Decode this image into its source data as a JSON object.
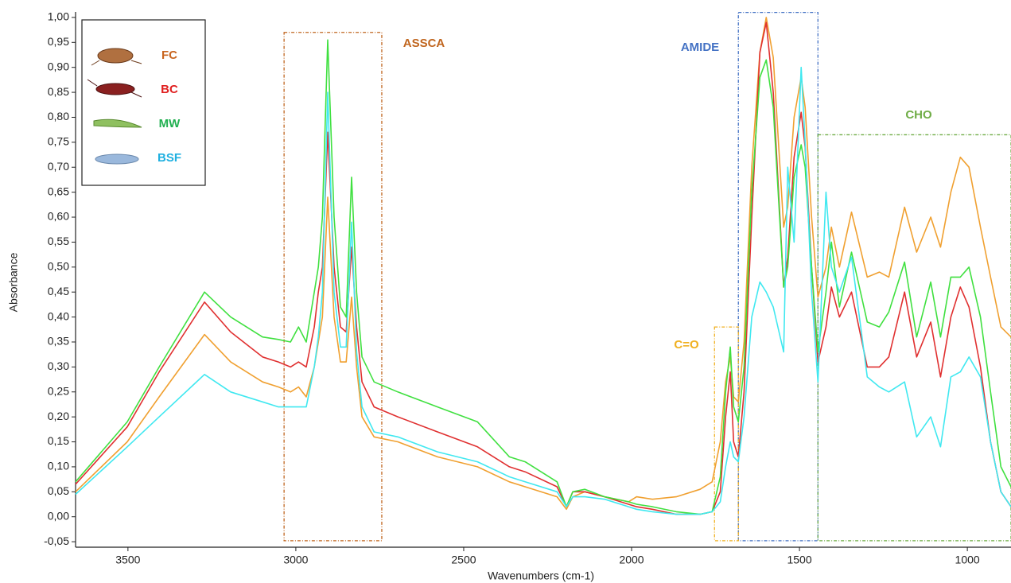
{
  "chart_data": {
    "type": "line",
    "x_label": "Wavenumbers (cm-1)",
    "y_label": "Absorbance",
    "xlim": [
      3656,
      870
    ],
    "ylim": [
      -0.061,
      1.011
    ],
    "xticks": [
      3500,
      3000,
      2500,
      2000,
      1500,
      1000
    ],
    "yticks": [
      {
        "value": -0.05,
        "label": "-0,05"
      },
      {
        "value": 0,
        "label": "0,00"
      },
      {
        "value": 0.05,
        "label": "0,05"
      },
      {
        "value": 0.1,
        "label": "0,10"
      },
      {
        "value": 0.15,
        "label": "0,15"
      },
      {
        "value": 0.2,
        "label": "0,20"
      },
      {
        "value": 0.25,
        "label": "0,25"
      },
      {
        "value": 0.3,
        "label": "0,30"
      },
      {
        "value": 0.35,
        "label": "0,35"
      },
      {
        "value": 0.4,
        "label": "0,40"
      },
      {
        "value": 0.45,
        "label": "0,45"
      },
      {
        "value": 0.5,
        "label": "0,50"
      },
      {
        "value": 0.55,
        "label": "0,55"
      },
      {
        "value": 0.6,
        "label": "0,60"
      },
      {
        "value": 0.65,
        "label": "0,65"
      },
      {
        "value": 0.7,
        "label": "0,70"
      },
      {
        "value": 0.75,
        "label": "0,75"
      },
      {
        "value": 0.8,
        "label": "0,80"
      },
      {
        "value": 0.85,
        "label": "0,85"
      },
      {
        "value": 0.9,
        "label": "0,90"
      },
      {
        "value": 0.95,
        "label": "0,95"
      },
      {
        "value": 1,
        "label": "1,00"
      }
    ],
    "grid": false,
    "legend": "upper left",
    "x": [
      3656,
      3502,
      3407,
      3272,
      3194,
      3099,
      3052,
      3016,
      2992,
      2969,
      2945,
      2933,
      2921,
      2905,
      2886,
      2867,
      2850,
      2834,
      2819,
      2803,
      2767,
      2696,
      2578,
      2459,
      2364,
      2317,
      2222,
      2194,
      2175,
      2139,
      2080,
      2009,
      1985,
      1938,
      1867,
      1796,
      1760,
      1736,
      1720,
      1706,
      1696,
      1682,
      1665,
      1642,
      1618,
      1599,
      1578,
      1547,
      1535,
      1516,
      1495,
      1483,
      1464,
      1445,
      1421,
      1405,
      1381,
      1345,
      1298,
      1262,
      1234,
      1187,
      1151,
      1109,
      1080,
      1049,
      1021,
      995,
      961,
      931,
      900,
      870
    ],
    "series": [
      {
        "name": "FC",
        "color": "#f0a030",
        "label_color": "#c8641e",
        "values": [
          0.05,
          0.15,
          0.24,
          0.365,
          0.31,
          0.27,
          0.26,
          0.25,
          0.26,
          0.24,
          0.3,
          0.35,
          0.4,
          0.64,
          0.4,
          0.31,
          0.31,
          0.44,
          0.3,
          0.2,
          0.16,
          0.15,
          0.12,
          0.1,
          0.07,
          0.06,
          0.04,
          0.015,
          0.04,
          0.05,
          0.04,
          0.03,
          0.04,
          0.035,
          0.04,
          0.055,
          0.07,
          0.15,
          0.27,
          0.32,
          0.24,
          0.23,
          0.35,
          0.7,
          0.93,
          1.0,
          0.92,
          0.58,
          0.62,
          0.8,
          0.88,
          0.82,
          0.6,
          0.44,
          0.5,
          0.58,
          0.5,
          0.61,
          0.48,
          0.49,
          0.48,
          0.62,
          0.53,
          0.6,
          0.54,
          0.65,
          0.72,
          0.7,
          0.58,
          0.48,
          0.38,
          0.36
        ]
      },
      {
        "name": "BC",
        "color": "#e03030",
        "label_color": "#e02020",
        "values": [
          0.065,
          0.18,
          0.29,
          0.43,
          0.37,
          0.32,
          0.31,
          0.3,
          0.31,
          0.3,
          0.38,
          0.45,
          0.5,
          0.77,
          0.5,
          0.38,
          0.37,
          0.54,
          0.38,
          0.27,
          0.22,
          0.2,
          0.17,
          0.14,
          0.1,
          0.09,
          0.06,
          0.02,
          0.05,
          0.05,
          0.04,
          0.025,
          0.02,
          0.015,
          0.005,
          0.005,
          0.01,
          0.05,
          0.2,
          0.29,
          0.15,
          0.12,
          0.25,
          0.6,
          0.93,
          0.99,
          0.85,
          0.46,
          0.52,
          0.72,
          0.81,
          0.74,
          0.5,
          0.31,
          0.38,
          0.46,
          0.4,
          0.45,
          0.3,
          0.3,
          0.32,
          0.45,
          0.32,
          0.39,
          0.28,
          0.4,
          0.46,
          0.42,
          0.3,
          0.15,
          0.05,
          0.02
        ]
      },
      {
        "name": "MW",
        "color": "#40e040",
        "label_color": "#20b050",
        "values": [
          0.07,
          0.19,
          0.3,
          0.45,
          0.4,
          0.36,
          0.355,
          0.35,
          0.38,
          0.35,
          0.45,
          0.5,
          0.6,
          0.955,
          0.6,
          0.42,
          0.4,
          0.68,
          0.45,
          0.32,
          0.27,
          0.25,
          0.22,
          0.19,
          0.12,
          0.11,
          0.07,
          0.02,
          0.05,
          0.055,
          0.04,
          0.03,
          0.025,
          0.02,
          0.01,
          0.005,
          0.01,
          0.08,
          0.25,
          0.34,
          0.22,
          0.19,
          0.3,
          0.65,
          0.88,
          0.915,
          0.82,
          0.46,
          0.5,
          0.68,
          0.745,
          0.7,
          0.5,
          0.33,
          0.45,
          0.55,
          0.42,
          0.53,
          0.39,
          0.38,
          0.41,
          0.51,
          0.36,
          0.47,
          0.36,
          0.48,
          0.48,
          0.5,
          0.4,
          0.25,
          0.1,
          0.06
        ]
      },
      {
        "name": "BSF",
        "color": "#40e8f0",
        "label_color": "#20b0e0",
        "values": [
          0.045,
          0.14,
          0.2,
          0.285,
          0.25,
          0.23,
          0.22,
          0.22,
          0.22,
          0.22,
          0.3,
          0.36,
          0.45,
          0.85,
          0.45,
          0.34,
          0.34,
          0.59,
          0.33,
          0.22,
          0.17,
          0.16,
          0.13,
          0.11,
          0.08,
          0.07,
          0.05,
          0.02,
          0.04,
          0.04,
          0.035,
          0.02,
          0.015,
          0.01,
          0.005,
          0.005,
          0.01,
          0.03,
          0.1,
          0.15,
          0.12,
          0.11,
          0.2,
          0.4,
          0.47,
          0.45,
          0.42,
          0.33,
          0.7,
          0.55,
          0.9,
          0.75,
          0.45,
          0.27,
          0.65,
          0.5,
          0.45,
          0.52,
          0.28,
          0.26,
          0.25,
          0.27,
          0.16,
          0.2,
          0.14,
          0.28,
          0.29,
          0.32,
          0.28,
          0.15,
          0.05,
          0.02
        ]
      }
    ],
    "annotations": [
      {
        "label": "ASSCA",
        "color": "#c0651e",
        "x": [
          3035,
          2744
        ],
        "y": [
          -0.048,
          0.97
        ]
      },
      {
        "label": "AMIDE",
        "color": "#4472c4",
        "x": [
          1682,
          1445
        ],
        "y": [
          -0.048,
          1.01
        ]
      },
      {
        "label": "C=O",
        "color": "#f0b020",
        "x": [
          1753,
          1682
        ],
        "y": [
          -0.048,
          0.38
        ]
      },
      {
        "label": "CHO",
        "color": "#70ad47",
        "x": [
          1445,
          870
        ],
        "y": [
          -0.048,
          0.765
        ]
      }
    ]
  }
}
